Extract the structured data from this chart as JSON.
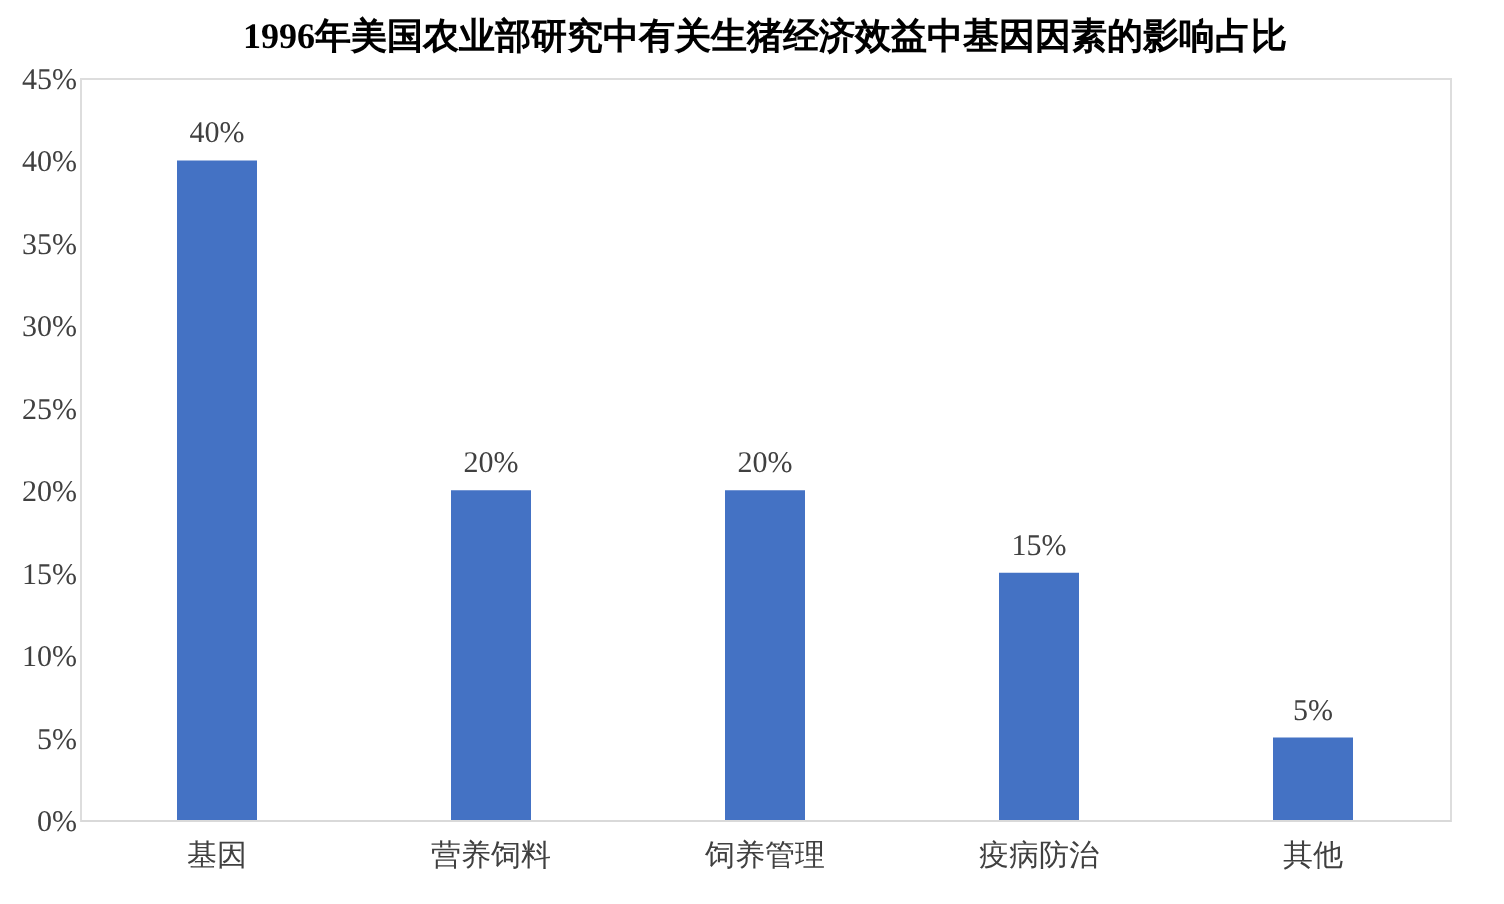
{
  "chart_data": {
    "type": "bar",
    "title": "1996年美国农业部研究中有关生猪经济效益中基因因素的影响占比",
    "categories": [
      "基因",
      "营养饲料",
      "饲养管理",
      "疫病防治",
      "其他"
    ],
    "values": [
      40,
      20,
      20,
      15,
      5
    ],
    "value_labels": [
      "40%",
      "20%",
      "20%",
      "15%",
      "5%"
    ],
    "color": "#4472c4",
    "ylim": [
      0,
      45
    ],
    "yticks": [
      {
        "value": 0,
        "label": "0%"
      },
      {
        "value": 5,
        "label": "5%"
      },
      {
        "value": 10,
        "label": "10%"
      },
      {
        "value": 15,
        "label": "15%"
      },
      {
        "value": 20,
        "label": "20%"
      },
      {
        "value": 25,
        "label": "25%"
      },
      {
        "value": 30,
        "label": "30%"
      },
      {
        "value": 35,
        "label": "35%"
      },
      {
        "value": 40,
        "label": "40%"
      },
      {
        "value": 45,
        "label": "45%"
      }
    ],
    "grid": false
  }
}
